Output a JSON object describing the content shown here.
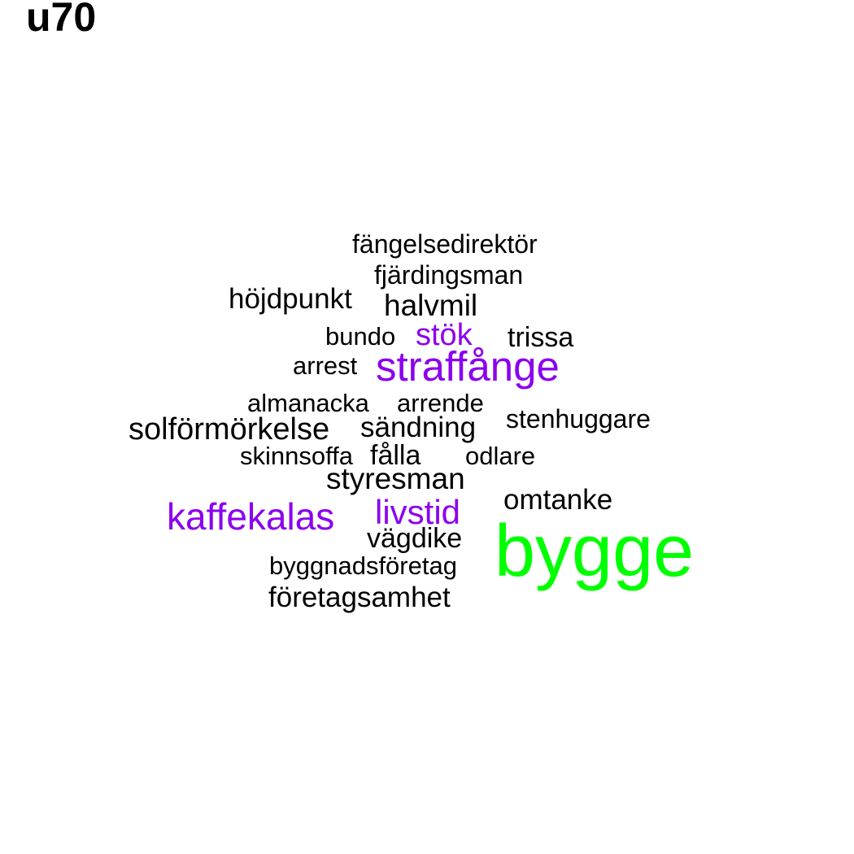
{
  "title": "u70",
  "colors": {
    "default": "#000000",
    "highlight": "#8b00ee",
    "top": "#00ff00"
  },
  "chart_data": {
    "type": "wordcloud",
    "title": "u70",
    "words": [
      {
        "text": "fängelsedirektör",
        "color": "default"
      },
      {
        "text": "fjärdingsman",
        "color": "default"
      },
      {
        "text": "höjdpunkt",
        "color": "default"
      },
      {
        "text": "halvmil",
        "color": "default"
      },
      {
        "text": "bundo",
        "color": "default"
      },
      {
        "text": "stök",
        "color": "highlight"
      },
      {
        "text": "trissa",
        "color": "default"
      },
      {
        "text": "arrest",
        "color": "default"
      },
      {
        "text": "straffånge",
        "color": "highlight"
      },
      {
        "text": "almanacka",
        "color": "default"
      },
      {
        "text": "arrende",
        "color": "default"
      },
      {
        "text": "stenhuggare",
        "color": "default"
      },
      {
        "text": "solförmörkelse",
        "color": "default"
      },
      {
        "text": "sändning",
        "color": "default"
      },
      {
        "text": "skinnsoffa",
        "color": "default"
      },
      {
        "text": "fålla",
        "color": "default"
      },
      {
        "text": "odlare",
        "color": "default"
      },
      {
        "text": "styresman",
        "color": "default"
      },
      {
        "text": "omtanke",
        "color": "default"
      },
      {
        "text": "kaffekalas",
        "color": "highlight"
      },
      {
        "text": "livstid",
        "color": "highlight"
      },
      {
        "text": "vägdike",
        "color": "default"
      },
      {
        "text": "bygge",
        "color": "top"
      },
      {
        "text": "byggnadsföretag",
        "color": "default"
      },
      {
        "text": "företagsamhet",
        "color": "default"
      }
    ]
  }
}
